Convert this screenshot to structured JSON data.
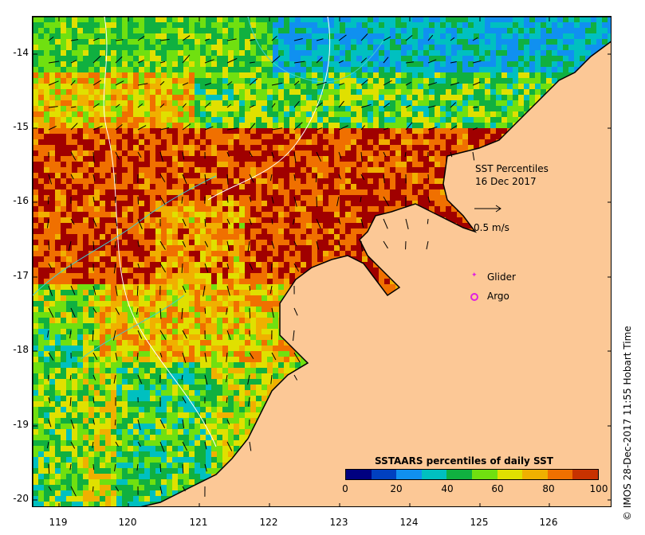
{
  "title": "SST Percentiles",
  "date": "16 Dec 2017",
  "vector_scale_label": "0.5 m/s",
  "legend": {
    "glider_label": "Glider",
    "argo_label": "Argo",
    "glider_color": "#e020e0",
    "argo_color": "#e020e0"
  },
  "colorbar": {
    "title": "SSTAARS percentiles of daily SST",
    "ticks": [
      "0",
      "20",
      "40",
      "60",
      "80",
      "100"
    ],
    "colors": [
      "#000080",
      "#0040c0",
      "#1090f0",
      "#00c0c0",
      "#10b040",
      "#70e010",
      "#e0e000",
      "#f0b000",
      "#f07000",
      "#c83200",
      "#a00000"
    ]
  },
  "credit": "© IMOS 28-Dec-2017 11:55 Hobart Time",
  "axes": {
    "lat_labels": [
      "-14",
      "-15",
      "-16",
      "-17",
      "-18",
      "-19",
      "-20"
    ],
    "lon_labels": [
      "119",
      "120",
      "121",
      "122",
      "123",
      "124",
      "125",
      "126"
    ],
    "lon_range": [
      118.6,
      126.75
    ],
    "lat_range": [
      -20.2,
      -13.5
    ]
  },
  "land_color": "#fcc896"
}
